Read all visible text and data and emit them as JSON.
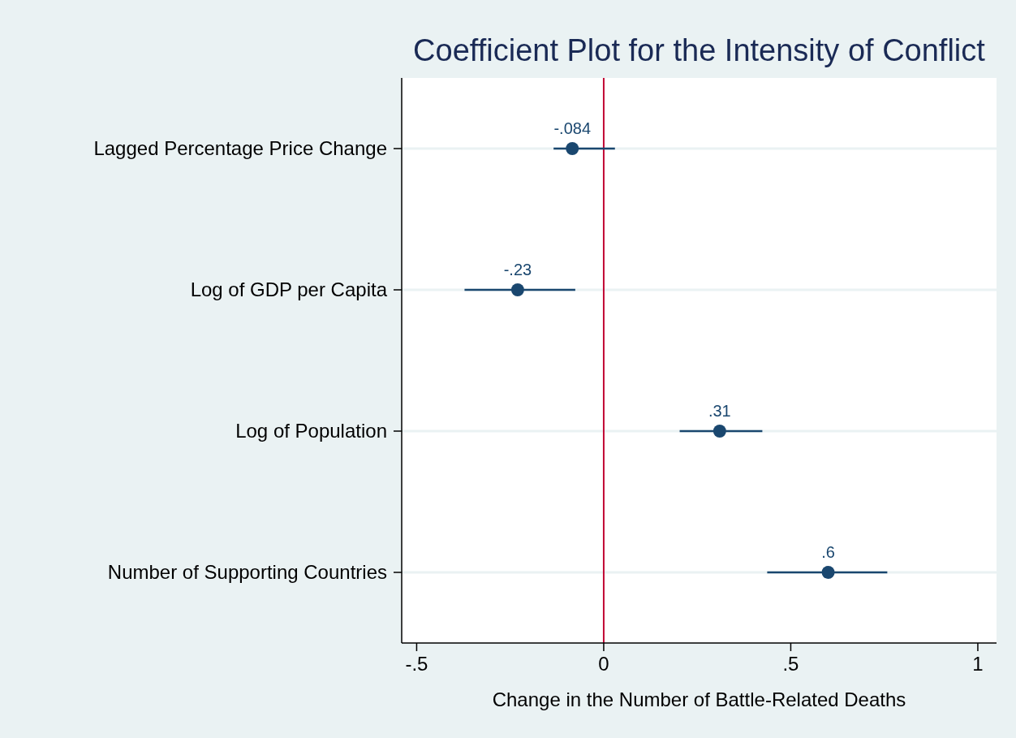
{
  "chart_data": {
    "type": "scatter",
    "orientation": "horizontal",
    "title": "Coefficient Plot for the Intensity of Conflict",
    "xlabel": "Change in the Number of Battle-Related Deaths",
    "categories": [
      "Lagged Percentage Price Change",
      "Log of GDP per Capita",
      "Log of Population",
      "Number of Supporting Countries"
    ],
    "values": [
      -0.084,
      -0.23,
      0.31,
      0.6
    ],
    "value_labels": [
      "-.084",
      "-.23",
      ".31",
      ".6"
    ],
    "errors": [
      [
        -0.134,
        0.03
      ],
      [
        -0.372,
        -0.076
      ],
      [
        0.203,
        0.424
      ],
      [
        0.437,
        0.758
      ]
    ],
    "color": "#1a476f",
    "xlim": [
      -0.54,
      1.05
    ],
    "xticks": [
      {
        "value": -0.5,
        "label": "-.5"
      },
      0,
      {
        "value": 0.5,
        "label": ".5"
      },
      1
    ],
    "ref_lines": [
      {
        "axis": "x",
        "value": 0,
        "color": "#c10534"
      }
    ],
    "grid": "y",
    "marker": "circle"
  }
}
